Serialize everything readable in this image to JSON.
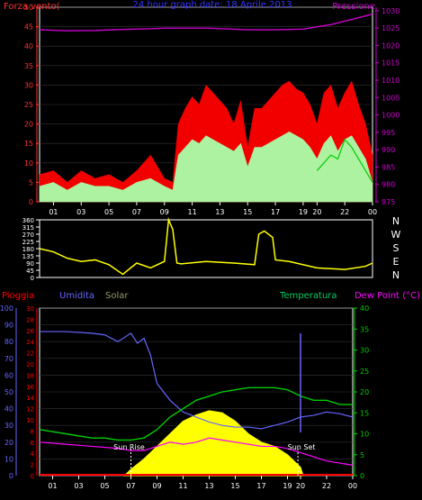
{
  "chart_data": [
    {
      "type": "line",
      "title": "24 hour graph date: 18 Aprile 2013",
      "left_label": "Forza vento(",
      "right_label": "Pressione",
      "x_ticks": [
        "01",
        "03",
        "05",
        "07",
        "09",
        "11",
        "13",
        "15",
        "17",
        "19",
        "20",
        "22",
        "00"
      ],
      "y_left_ticks": [
        0,
        5,
        10,
        15,
        20,
        25,
        30,
        35,
        40,
        45,
        50
      ],
      "y_left_range": [
        0,
        50
      ],
      "y_right_ticks": [
        975,
        980,
        985,
        990,
        995,
        1000,
        1005,
        1010,
        1015,
        1020,
        1025,
        1030
      ],
      "y_right_range": [
        975,
        1031
      ],
      "x_range": [
        0,
        24
      ],
      "colors": {
        "gust": "#ff0000",
        "wind": "#aaffaa",
        "avg": "#00cc00",
        "pressure": "#cc00cc"
      },
      "series": [
        {
          "key": "pressure",
          "x": [
            0,
            2,
            4,
            6,
            8,
            9,
            12,
            15,
            17,
            19,
            21,
            22,
            23,
            24
          ],
          "values": [
            1024.5,
            1024.2,
            1024.3,
            1024.6,
            1024.8,
            1025,
            1025,
            1024.5,
            1024.5,
            1024.7,
            1026,
            1027,
            1028,
            1029
          ]
        },
        {
          "key": "gust",
          "x": [
            0,
            1,
            2,
            3,
            4,
            5,
            6,
            7,
            8,
            9,
            9.6,
            10,
            10.5,
            11,
            11.5,
            12,
            12.5,
            13,
            13.5,
            14,
            14.5,
            15,
            15.5,
            16,
            16.5,
            17,
            17.5,
            18,
            18.5,
            19,
            19.5,
            20,
            20.5,
            21,
            21.5,
            22,
            22.5,
            23,
            23.5,
            24
          ],
          "values": [
            7,
            8,
            5,
            8,
            6,
            7,
            5,
            8,
            12,
            6,
            5,
            20,
            24,
            27,
            25,
            30,
            28,
            26,
            24,
            20,
            26,
            14,
            24,
            24,
            26,
            28,
            30,
            31,
            29,
            28,
            25,
            20,
            28,
            30,
            24,
            28,
            31,
            25,
            20,
            12
          ]
        },
        {
          "key": "wind",
          "x": [
            0,
            1,
            2,
            3,
            4,
            5,
            6,
            7,
            8,
            9,
            9.6,
            10,
            10.5,
            11,
            11.5,
            12,
            12.5,
            13,
            13.5,
            14,
            14.5,
            15,
            15.5,
            16,
            16.5,
            17,
            17.5,
            18,
            18.5,
            19,
            19.5,
            20,
            20.5,
            21,
            21.5,
            22,
            22.5,
            23,
            23.5,
            24
          ],
          "values": [
            4,
            5,
            3,
            5,
            4,
            4,
            3,
            5,
            6,
            4,
            3,
            12,
            14,
            16,
            15,
            17,
            16,
            15,
            14,
            13,
            15,
            9,
            14,
            14,
            15,
            16,
            17,
            18,
            17,
            16,
            14,
            11,
            15,
            17,
            13,
            16,
            17,
            14,
            11,
            5
          ]
        },
        {
          "key": "avg",
          "x": [
            20,
            21,
            21.5,
            22,
            22.5,
            23,
            24
          ],
          "values": [
            8,
            12,
            11,
            16,
            14,
            11,
            5
          ]
        }
      ]
    },
    {
      "type": "line",
      "y_ticks": [
        0,
        45,
        90,
        135,
        180,
        225,
        270,
        315,
        360
      ],
      "y_range": [
        0,
        360
      ],
      "x_range": [
        0,
        24
      ],
      "compass_labels": [
        "N",
        "W",
        "S",
        "E",
        "N"
      ],
      "color": "#ffff00",
      "series": [
        {
          "name": "",
          "x": [
            0,
            1,
            2,
            3,
            4,
            5,
            6,
            7,
            8,
            9,
            9.3,
            9.6,
            9.9,
            10.2,
            12,
            14,
            15.5,
            15.8,
            16.2,
            16.8,
            17,
            18,
            20,
            22,
            23.5,
            24
          ],
          "values": [
            180,
            160,
            120,
            100,
            110,
            80,
            20,
            90,
            60,
            100,
            360,
            300,
            90,
            85,
            100,
            90,
            80,
            270,
            290,
            250,
            110,
            100,
            60,
            50,
            70,
            90
          ]
        }
      ]
    },
    {
      "type": "line",
      "labels": {
        "rain": "Pioggia",
        "humidity": "Umidita",
        "solar": "Solar",
        "temperature": "Temperatura",
        "dewpoint": "Dew Point (°C)"
      },
      "sunrise_label": "Sun Rise",
      "sunset_label": "Sun Set",
      "y_hum_ticks": [
        0,
        10,
        20,
        30,
        40,
        50,
        60,
        70,
        80,
        90,
        100
      ],
      "y_rain_ticks": [
        0,
        2,
        4,
        6,
        8,
        10,
        12,
        14,
        16,
        18,
        20,
        22,
        24,
        26,
        28,
        30
      ],
      "y_temp_ticks": [
        0,
        5,
        10,
        15,
        20,
        25,
        30,
        35,
        40
      ],
      "y_temp_range": [
        0,
        40
      ],
      "y_hum_range": [
        0,
        100
      ],
      "x_range": [
        0,
        24
      ],
      "colors": {
        "rain": "#ff0000",
        "humidity": "#6666ff",
        "solar": "#ffff00",
        "temperature": "#00cc00",
        "dewpoint": "#ff00ff",
        "hum_axis": "#6666ff",
        "rain_axis": "#ff0000",
        "temp_axis": "#00cc00"
      },
      "series": [
        {
          "key": "humidity",
          "x": [
            0,
            2,
            4,
            5,
            6,
            7,
            7.5,
            8,
            8.5,
            9,
            10,
            11,
            12,
            13,
            14,
            15,
            16,
            17,
            18,
            19,
            20,
            21,
            22,
            23,
            24
          ],
          "values": [
            86,
            86,
            85,
            84,
            80,
            85,
            79,
            82,
            72,
            55,
            45,
            38,
            35,
            32,
            30,
            29,
            29,
            28,
            30,
            32,
            35,
            36,
            38,
            37,
            35
          ]
        },
        {
          "key": "temperature",
          "x": [
            0,
            2,
            4,
            5,
            6,
            7,
            8,
            9,
            10,
            11,
            12,
            13,
            14,
            15,
            16,
            17,
            18,
            19,
            20,
            21,
            22,
            23,
            24
          ],
          "values": [
            11,
            10,
            9,
            9,
            8.5,
            8.5,
            9,
            11,
            14,
            16,
            18,
            19,
            20,
            20.5,
            21,
            21,
            21,
            20.5,
            19,
            18,
            18,
            17,
            17
          ]
        },
        {
          "key": "dewpoint",
          "x": [
            0,
            2,
            4,
            6,
            7,
            8,
            9,
            10,
            11,
            12,
            13,
            14,
            15,
            16,
            17,
            18,
            19,
            20,
            21,
            22,
            23,
            24
          ],
          "values": [
            8,
            7.5,
            7,
            6.5,
            6,
            6,
            7,
            8,
            7.5,
            8,
            9,
            8.5,
            8,
            7.5,
            7,
            7,
            6.5,
            5.5,
            4.5,
            3.5,
            3,
            2.5
          ]
        },
        {
          "key": "solar",
          "x": [
            6.5,
            7,
            8,
            9,
            10,
            11,
            12,
            13,
            14,
            15,
            16,
            17,
            18,
            19,
            20,
            20.2
          ],
          "values": [
            0,
            1.5,
            4,
            7,
            10,
            13,
            14.5,
            15.5,
            15,
            13,
            10,
            8,
            7,
            5,
            2,
            0
          ]
        }
      ],
      "sunrise_x": 7.0,
      "sunset_x": 19.8,
      "spike_x": 20.0
    }
  ]
}
